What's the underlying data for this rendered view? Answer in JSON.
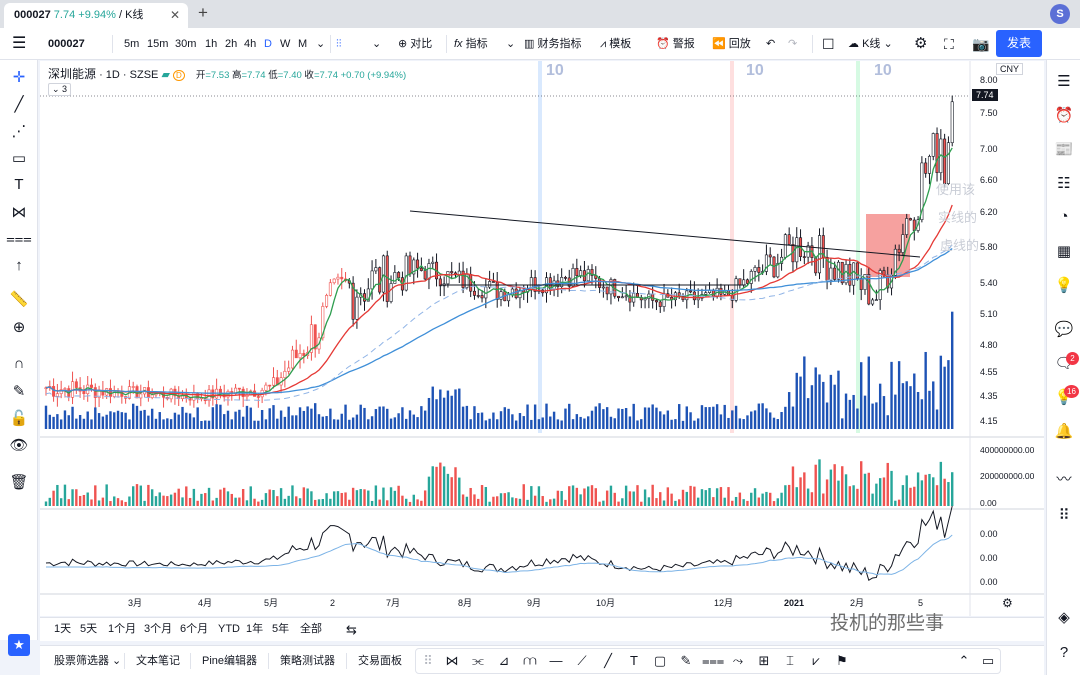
{
  "browser": {
    "tab_symbol": "000027",
    "tab_price": "7.74",
    "tab_change": "+9.94%",
    "tab_chart_type": "K线",
    "tab_separator": "/",
    "close_glyph": "✕",
    "new_tab_glyph": "+",
    "avatar_letter": "S"
  },
  "toolbar": {
    "symbol": "000027",
    "intervals": [
      "5m",
      "15m",
      "30m",
      "1h",
      "2h",
      "4h",
      "D",
      "W",
      "M"
    ],
    "active_interval": "D",
    "compare": "对比",
    "indicators": "指标",
    "financials": "财务指标",
    "templates": "模板",
    "alerts": "警报",
    "replay": "回放",
    "chart_type": "K线",
    "publish": "发表"
  },
  "legend": {
    "name": "深圳能源",
    "interval": "1D",
    "exchange": "SZSE",
    "marker": "D",
    "open_label": "开",
    "open": "=7.53",
    "high_label": "高",
    "high": "=7.74",
    "low_label": "低",
    "low": "=7.40",
    "close_label": "收",
    "close": "=7.74",
    "change": "+0.70 (+9.94%)",
    "indicator_count": "3"
  },
  "price_axis": {
    "currency": "CNY",
    "last_price": "7.74",
    "ticks": [
      "8.00",
      "7.50",
      "7.00",
      "6.60",
      "6.20",
      "5.80",
      "5.40",
      "5.10",
      "4.80",
      "4.55",
      "4.35",
      "4.15"
    ]
  },
  "volume_axis": {
    "ticks": [
      "400000000.00",
      "200000000.00",
      "0.00"
    ]
  },
  "oscillator_axis": {
    "ticks": [
      "0.00",
      "0.00",
      "0.00"
    ]
  },
  "time_axis": {
    "labels": [
      "3月",
      "4月",
      "5月",
      "2",
      "7月",
      "8月",
      "9月",
      "10月",
      "12月",
      "2021",
      "2月",
      "5"
    ]
  },
  "cycle_labels": [
    "10",
    "10",
    "10"
  ],
  "faded_notes": [
    "使用该",
    "实线的",
    "虚线的"
  ],
  "ranges": [
    "1天",
    "5天",
    "1个月",
    "3个月",
    "6个月",
    "YTD",
    "1年",
    "5年",
    "全部"
  ],
  "bottom": {
    "screener": "股票筛选器",
    "notes": "文本笔记",
    "pine": "Pine编辑器",
    "tester": "策略测试器",
    "trading": "交易面板"
  },
  "watermark": "投机的那些事",
  "right_badges": {
    "chat": "2",
    "ideas": "16"
  },
  "colors": {
    "up": "#26a69a",
    "down": "#ef5350",
    "volume": "#1e53b5",
    "ma_short": "#2e9e4f",
    "ma_mid": "#e53935",
    "ma_long": "#3f8fd8",
    "accent": "#2962ff"
  },
  "chart_data": {
    "type": "candlestick",
    "ylim": [
      4.1,
      8.1
    ],
    "x": [
      "2020-03",
      "2020-04",
      "2020-05",
      "2020-06",
      "2020-07",
      "2020-08",
      "2020-09",
      "2020-10",
      "2020-11",
      "2020-12",
      "2021-01",
      "2021-02",
      "2021-03"
    ],
    "close": [
      4.6,
      4.55,
      4.5,
      4.6,
      5.7,
      5.9,
      5.65,
      5.85,
      5.55,
      5.6,
      6.2,
      5.6,
      7.74
    ],
    "high": [
      4.85,
      4.7,
      4.65,
      4.75,
      6.2,
      6.0,
      5.95,
      5.95,
      5.8,
      5.85,
      6.65,
      6.35,
      7.74
    ],
    "low": [
      4.35,
      4.4,
      4.4,
      4.35,
      4.6,
      5.45,
      5.45,
      5.45,
      5.45,
      5.45,
      5.7,
      5.45,
      5.75
    ]
  }
}
